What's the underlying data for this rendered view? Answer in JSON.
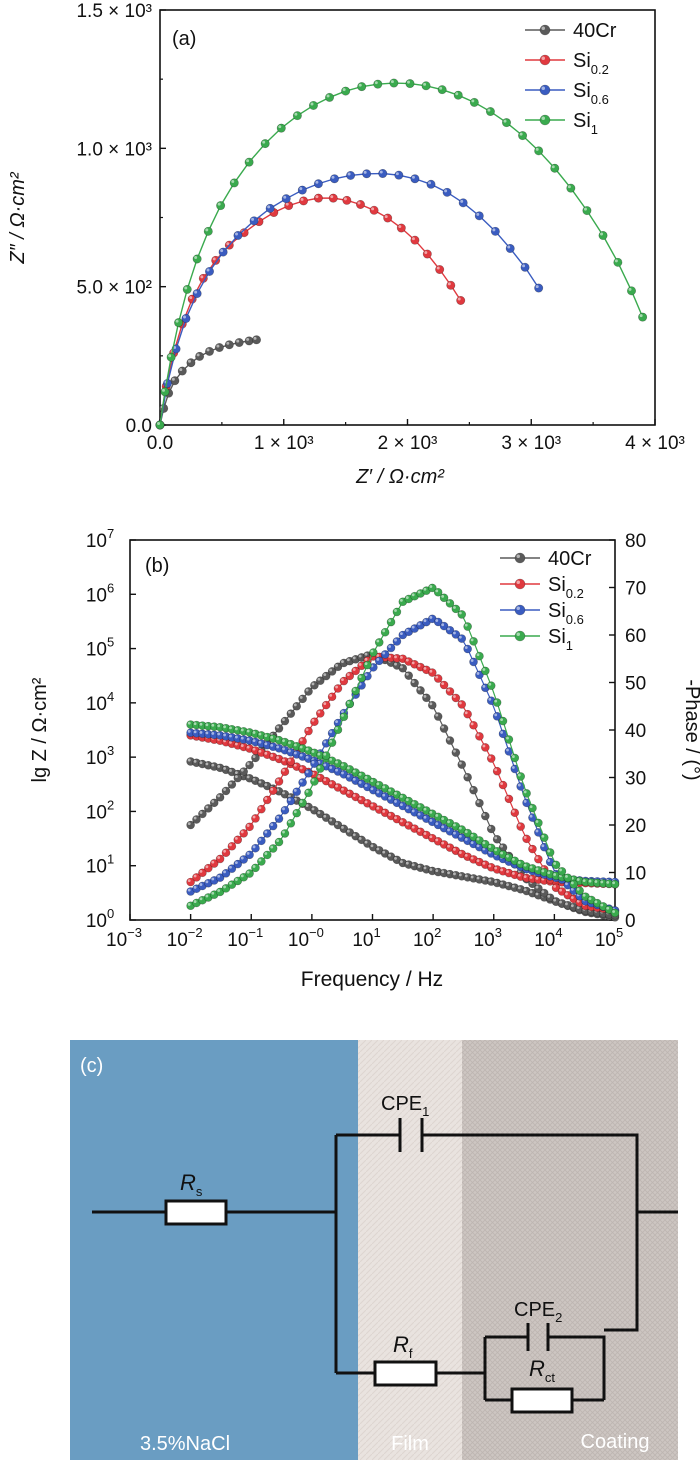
{
  "colors": {
    "40Cr": "#5a5a5a",
    "Si0.2": "#e0393f",
    "Si0.6": "#3a5cc0",
    "Si1": "#3aaa4e",
    "electrolyte": "#6a9dc2",
    "film": "#e8e2de",
    "coating": "#cdc6c2"
  },
  "chart_data": [
    {
      "type": "scatter",
      "panel_label": "(a)",
      "xlabel": "Z′ / Ω·cm²",
      "ylabel": "Z″ / Ω·cm²",
      "xlim": [
        0,
        4000
      ],
      "ylim": [
        0,
        1500
      ],
      "x_ticks": [
        {
          "value": 0,
          "label": "0.0"
        },
        {
          "value": 1000,
          "label": "1 × 10³"
        },
        {
          "value": 2000,
          "label": "2 × 10³"
        },
        {
          "value": 3000,
          "label": "3 × 10³"
        },
        {
          "value": 4000,
          "label": "4 × 10³"
        }
      ],
      "y_ticks": [
        {
          "value": 0,
          "label": "0.0"
        },
        {
          "value": 500,
          "label": "5.0 × 10²"
        },
        {
          "value": 1000,
          "label": "1.0 × 10³"
        },
        {
          "value": 1500,
          "label": "1.5 × 10³"
        }
      ],
      "legend_position": "top-right",
      "series": [
        {
          "name": "40Cr",
          "key": "40Cr",
          "x": [
            0,
            30,
            70,
            120,
            180,
            250,
            320,
            400,
            480,
            560,
            640,
            720,
            780
          ],
          "y": [
            0,
            60,
            115,
            160,
            195,
            225,
            248,
            266,
            280,
            290,
            298,
            304,
            308
          ]
        },
        {
          "name": "Si0.2",
          "key": "Si0.2",
          "x": [
            0,
            50,
            110,
            180,
            260,
            350,
            450,
            560,
            680,
            800,
            920,
            1040,
            1160,
            1280,
            1400,
            1510,
            1620,
            1730,
            1840,
            1950,
            2060,
            2160,
            2260,
            2350,
            2430
          ],
          "y": [
            0,
            140,
            260,
            365,
            455,
            530,
            595,
            650,
            695,
            735,
            768,
            793,
            810,
            820,
            820,
            812,
            797,
            776,
            748,
            712,
            668,
            618,
            562,
            505,
            450
          ]
        },
        {
          "name": "Si0.6",
          "key": "Si0.6",
          "x": [
            0,
            60,
            130,
            210,
            300,
            400,
            510,
            630,
            760,
            890,
            1020,
            1150,
            1280,
            1410,
            1540,
            1670,
            1800,
            1930,
            2060,
            2190,
            2320,
            2450,
            2580,
            2710,
            2830,
            2950,
            3060
          ],
          "y": [
            0,
            150,
            275,
            385,
            475,
            555,
            625,
            685,
            738,
            783,
            818,
            849,
            872,
            890,
            902,
            908,
            909,
            903,
            890,
            870,
            841,
            803,
            756,
            700,
            638,
            570,
            495
          ]
        },
        {
          "name": "Si1",
          "key": "Si1",
          "x": [
            0,
            40,
            90,
            150,
            220,
            300,
            390,
            490,
            600,
            720,
            850,
            980,
            1110,
            1240,
            1370,
            1500,
            1630,
            1760,
            1890,
            2020,
            2150,
            2280,
            2410,
            2540,
            2670,
            2800,
            2930,
            3060,
            3190,
            3320,
            3450,
            3580,
            3700,
            3810,
            3900
          ],
          "y": [
            0,
            120,
            245,
            370,
            490,
            600,
            700,
            793,
            875,
            950,
            1017,
            1073,
            1118,
            1155,
            1184,
            1207,
            1223,
            1232,
            1236,
            1234,
            1226,
            1212,
            1192,
            1166,
            1133,
            1093,
            1046,
            991,
            928,
            856,
            775,
            685,
            588,
            485,
            390
          ]
        }
      ]
    },
    {
      "type": "scatter",
      "panel_label": "(b)",
      "xlabel": "Frequency / Hz",
      "ylabel": "lg Z / Ω·cm²",
      "y2label": "-Phase / (°)",
      "x_scale": "log",
      "xlim": [
        0.001,
        100000
      ],
      "y_scale": "log",
      "ylim": [
        1,
        10000000
      ],
      "y2lim": [
        0,
        80
      ],
      "x_ticks": [
        {
          "exp": -3,
          "base": "10",
          "sup": "−3"
        },
        {
          "exp": -2,
          "base": "10",
          "sup": "−2"
        },
        {
          "exp": -1,
          "base": "10",
          "sup": "−1"
        },
        {
          "exp": 0,
          "base": "10",
          "sup": "−0"
        },
        {
          "exp": 1,
          "base": "10",
          "sup": "1"
        },
        {
          "exp": 2,
          "base": "10",
          "sup": "2"
        },
        {
          "exp": 3,
          "base": "10",
          "sup": "3"
        },
        {
          "exp": 4,
          "base": "10",
          "sup": "4"
        },
        {
          "exp": 5,
          "base": "10",
          "sup": "5"
        }
      ],
      "y_ticks": [
        {
          "exp": 0,
          "base": "10",
          "sup": "0"
        },
        {
          "exp": 1,
          "base": "10",
          "sup": "1"
        },
        {
          "exp": 2,
          "base": "10",
          "sup": "2"
        },
        {
          "exp": 3,
          "base": "10",
          "sup": "3"
        },
        {
          "exp": 4,
          "base": "10",
          "sup": "4"
        },
        {
          "exp": 5,
          "base": "10",
          "sup": "5"
        },
        {
          "exp": 6,
          "base": "10",
          "sup": "6"
        },
        {
          "exp": 7,
          "base": "10",
          "sup": "7"
        }
      ],
      "y2_ticks": [
        "0",
        "10",
        "20",
        "30",
        "40",
        "50",
        "60",
        "70",
        "80"
      ],
      "legend_position": "top-right",
      "series": [
        {
          "name": "40Cr",
          "key": "40Cr",
          "impedance_log10": [
            [
              -2,
              2.92
            ],
            [
              -1.5,
              2.8
            ],
            [
              -1,
              2.6
            ],
            [
              -0.5,
              2.35
            ],
            [
              0,
              2.05
            ],
            [
              0.5,
              1.7
            ],
            [
              1,
              1.35
            ],
            [
              1.5,
              1.05
            ],
            [
              2,
              0.9
            ],
            [
              2.5,
              0.8
            ],
            [
              3,
              0.7
            ],
            [
              3.5,
              0.55
            ],
            [
              4,
              0.35
            ],
            [
              4.5,
              0.15
            ],
            [
              5,
              0.05
            ]
          ],
          "phase_deg": [
            [
              -2,
              20
            ],
            [
              -1.5,
              26
            ],
            [
              -1,
              33
            ],
            [
              -0.5,
              41
            ],
            [
              0,
              49
            ],
            [
              0.5,
              54
            ],
            [
              1,
              56
            ],
            [
              1.5,
              53
            ],
            [
              2,
              45
            ],
            [
              2.5,
              32
            ],
            [
              3,
              18
            ],
            [
              3.5,
              9
            ],
            [
              4,
              4
            ],
            [
              4.5,
              2
            ],
            [
              5,
              1
            ]
          ]
        },
        {
          "name": "Si0.2",
          "key": "Si0.2",
          "impedance_log10": [
            [
              -2,
              3.4
            ],
            [
              -1.5,
              3.3
            ],
            [
              -1,
              3.15
            ],
            [
              -0.5,
              2.95
            ],
            [
              0,
              2.7
            ],
            [
              0.5,
              2.4
            ],
            [
              1,
              2.1
            ],
            [
              1.5,
              1.8
            ],
            [
              2,
              1.5
            ],
            [
              2.5,
              1.2
            ],
            [
              3,
              0.95
            ],
            [
              3.5,
              0.78
            ],
            [
              4,
              0.7
            ],
            [
              4.5,
              0.68
            ],
            [
              5,
              0.66
            ]
          ],
          "phase_deg": [
            [
              -2,
              8
            ],
            [
              -1.5,
              13
            ],
            [
              -1,
              20
            ],
            [
              -0.5,
              30
            ],
            [
              0,
              41
            ],
            [
              0.5,
              50
            ],
            [
              1,
              55.5
            ],
            [
              1.5,
              55
            ],
            [
              2,
              52
            ],
            [
              2.5,
              45
            ],
            [
              3,
              33
            ],
            [
              3.5,
              18
            ],
            [
              4,
              7
            ],
            [
              4.5,
              3
            ],
            [
              5,
              2
            ]
          ]
        },
        {
          "name": "Si0.6",
          "key": "Si0.6",
          "impedance_log10": [
            [
              -2,
              3.45
            ],
            [
              -1.5,
              3.4
            ],
            [
              -1,
              3.3
            ],
            [
              -0.5,
              3.15
            ],
            [
              0,
              2.95
            ],
            [
              0.5,
              2.7
            ],
            [
              1,
              2.4
            ],
            [
              1.5,
              2.1
            ],
            [
              2,
              1.8
            ],
            [
              2.5,
              1.5
            ],
            [
              3,
              1.2
            ],
            [
              3.5,
              0.95
            ],
            [
              4,
              0.78
            ],
            [
              4.5,
              0.72
            ],
            [
              5,
              0.7
            ]
          ],
          "phase_deg": [
            [
              -2,
              6
            ],
            [
              -1.5,
              9
            ],
            [
              -1,
              14
            ],
            [
              -0.5,
              22
            ],
            [
              0,
              32
            ],
            [
              0.5,
              43
            ],
            [
              1,
              53
            ],
            [
              1.5,
              60
            ],
            [
              2,
              63.5
            ],
            [
              2.5,
              59
            ],
            [
              3,
              45
            ],
            [
              3.5,
              26
            ],
            [
              4,
              10
            ],
            [
              4.5,
              4
            ],
            [
              5,
              2
            ]
          ]
        },
        {
          "name": "Si1",
          "key": "Si1",
          "impedance_log10": [
            [
              -2,
              3.6
            ],
            [
              -1.5,
              3.55
            ],
            [
              -1,
              3.45
            ],
            [
              -0.5,
              3.3
            ],
            [
              0,
              3.1
            ],
            [
              0.5,
              2.85
            ],
            [
              1,
              2.55
            ],
            [
              1.5,
              2.25
            ],
            [
              2,
              1.95
            ],
            [
              2.5,
              1.65
            ],
            [
              3,
              1.3
            ],
            [
              3.5,
              1.0
            ],
            [
              4,
              0.82
            ],
            [
              4.5,
              0.7
            ],
            [
              5,
              0.66
            ]
          ],
          "phase_deg": [
            [
              -2,
              3
            ],
            [
              -1.5,
              6
            ],
            [
              -1,
              10
            ],
            [
              -0.5,
              17
            ],
            [
              0,
              28
            ],
            [
              0.5,
              42
            ],
            [
              1,
              56
            ],
            [
              1.5,
              67
            ],
            [
              2,
              70
            ],
            [
              2.5,
              64
            ],
            [
              3,
              48
            ],
            [
              3.5,
              28
            ],
            [
              4,
              12
            ],
            [
              4.5,
              5
            ],
            [
              5,
              1.5
            ]
          ]
        }
      ]
    }
  ],
  "legend": [
    {
      "key": "40Cr",
      "main": "40Cr",
      "sub": ""
    },
    {
      "key": "Si0.2",
      "main": "Si",
      "sub": "0.2"
    },
    {
      "key": "Si0.6",
      "main": "Si",
      "sub": "0.6"
    },
    {
      "key": "Si1",
      "main": "Si",
      "sub": "1"
    }
  ],
  "circuit": {
    "panel_label": "(c)",
    "region_labels": {
      "electrolyte": "3.5%NaCl",
      "film": "Film",
      "coating": "Coating"
    },
    "cpe1": {
      "main": "CPE",
      "sub": "1"
    },
    "cpe2": {
      "main": "CPE",
      "sub": "2"
    },
    "rs": {
      "main": "R",
      "sub": "s"
    },
    "rf": {
      "main": "R",
      "sub": "f"
    },
    "rct": {
      "main": "R",
      "sub": "ct"
    }
  }
}
